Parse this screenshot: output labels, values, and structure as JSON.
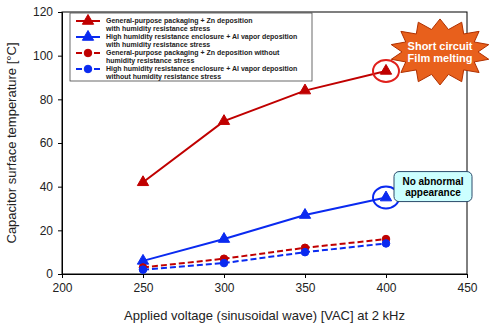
{
  "chart_data": {
    "type": "line",
    "x": [
      250,
      300,
      350,
      400
    ],
    "series": [
      {
        "name": "General-purpose packaging + Zn deposition\nwith humidity resistance stress",
        "color": "#c00000",
        "marker": "triangle",
        "line_style": "solid",
        "values": [
          42,
          70,
          84,
          93
        ]
      },
      {
        "name": "High humidity resistance enclosure + Al vapor deposition\nwith humidity resistance stress",
        "color": "#0a2af0",
        "marker": "triangle",
        "line_style": "solid",
        "values": [
          6,
          16,
          27,
          35
        ]
      },
      {
        "name": "General-purpose packaging + Zn deposition    without\nhumidity resistance stress",
        "color": "#c00000",
        "marker": "circle",
        "line_style": "dashed",
        "values": [
          3,
          7,
          12,
          16
        ]
      },
      {
        "name": "High humidity resistance enclosure + Al vapor deposition\nwithout humidity resistance stress",
        "color": "#0a2af0",
        "marker": "circle",
        "line_style": "dashed",
        "values": [
          2,
          5,
          10,
          14
        ]
      }
    ],
    "xlim": [
      200,
      450
    ],
    "xticks": [
      200,
      250,
      300,
      350,
      400,
      450
    ],
    "ylim": [
      0,
      120
    ],
    "yticks": [
      0,
      20,
      40,
      60,
      80,
      100,
      120
    ],
    "x_label": "Applied voltage (sinusoidal wave) [VAC] at 2 kHz",
    "y_label": "Capacitor surface temperature [°C]",
    "annotations": [
      {
        "text": "Short circuit\nFilm melting",
        "x": 400,
        "y": 93
      },
      {
        "text": "No abnormal\nappearance",
        "x": 400,
        "y": 35
      }
    ],
    "grid": false,
    "legend": "upper left"
  }
}
